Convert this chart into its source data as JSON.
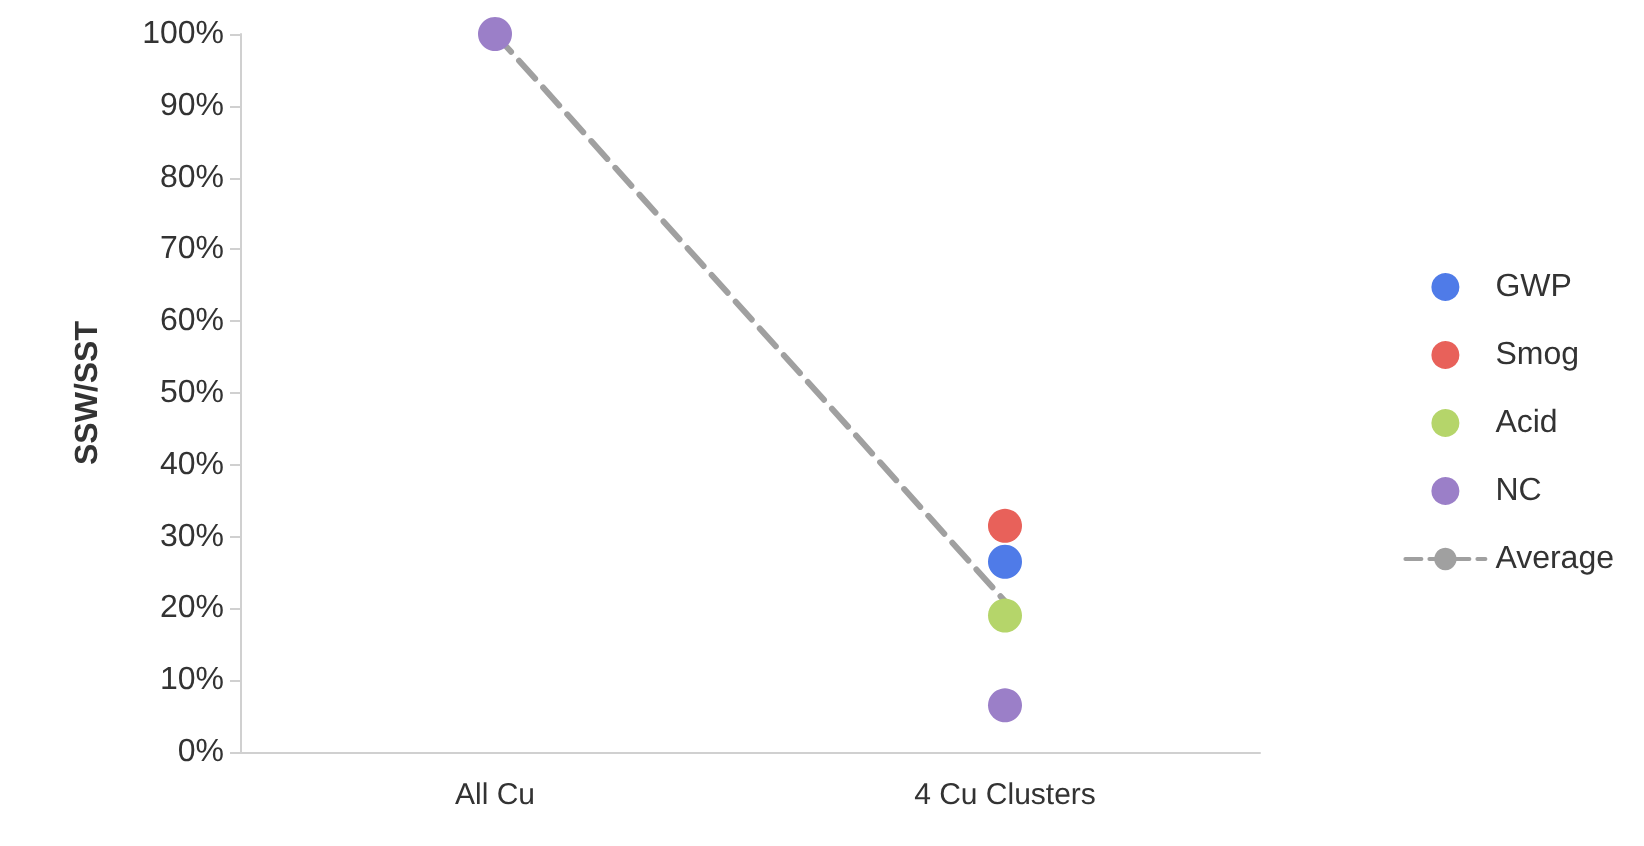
{
  "chart_data": {
    "type": "scatter",
    "ylabel": "SSW/SST",
    "categories": [
      "All Cu",
      "4 Cu Clusters"
    ],
    "series": [
      {
        "name": "GWP",
        "color": "#4f7be8",
        "values": [
          null,
          26.5
        ]
      },
      {
        "name": "Smog",
        "color": "#e8615a",
        "values": [
          null,
          31.5
        ]
      },
      {
        "name": "Acid",
        "color": "#b5d56a",
        "values": [
          null,
          19
        ]
      },
      {
        "name": "NC",
        "color": "#9b7fc8",
        "values": [
          100,
          6.5
        ]
      },
      {
        "name": "Average",
        "type": "line",
        "color": "#a0a0a0",
        "line_style": "dashed",
        "marker": "none",
        "values": [
          100,
          21
        ]
      }
    ],
    "ylim": [
      0,
      100
    ],
    "yticks": [
      {
        "value": 0,
        "label": "0%"
      },
      {
        "value": 10,
        "label": "10%"
      },
      {
        "value": 20,
        "label": "20%"
      },
      {
        "value": 30,
        "label": "30%"
      },
      {
        "value": 40,
        "label": "40%"
      },
      {
        "value": 50,
        "label": "50%"
      },
      {
        "value": 60,
        "label": "60%"
      },
      {
        "value": 70,
        "label": "70%"
      },
      {
        "value": 80,
        "label": "80%"
      },
      {
        "value": 90,
        "label": "90%"
      },
      {
        "value": 100,
        "label": "100%"
      }
    ],
    "marker": "circle",
    "legend": "right",
    "grid": false
  }
}
